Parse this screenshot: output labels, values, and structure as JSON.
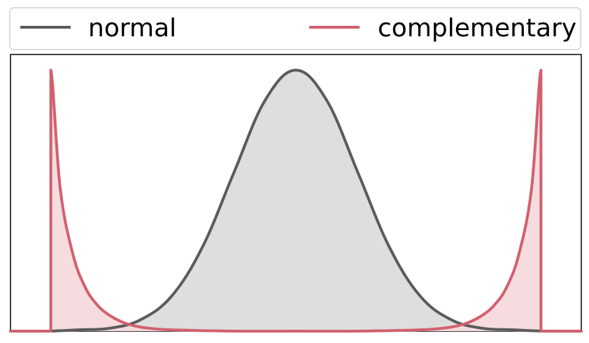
{
  "chart_data": {
    "type": "area",
    "title": "",
    "xlabel": "",
    "ylabel": "",
    "grid": false,
    "axis_ticks": false,
    "legend": {
      "placement": "top",
      "columns": 2,
      "entries": [
        "normal",
        "complementary"
      ]
    },
    "xlim": [
      -4.6,
      4.6
    ],
    "ylim": [
      0,
      1.06
    ],
    "series": [
      {
        "name": "normal",
        "color": "#5b5b5b",
        "fill": "#dedede",
        "x": [
          -4.6,
          -4.0,
          -3.5,
          -3.0,
          -2.5,
          -2.0,
          -1.5,
          -1.0,
          -0.5,
          0.0,
          0.5,
          1.0,
          1.5,
          2.0,
          2.5,
          3.0,
          3.5,
          4.0,
          4.6
        ],
        "y": [
          0.0,
          0.0,
          0.005,
          0.011,
          0.044,
          0.135,
          0.325,
          0.607,
          0.883,
          1.0,
          0.883,
          0.607,
          0.325,
          0.135,
          0.044,
          0.011,
          0.005,
          0.0,
          0.0
        ]
      },
      {
        "name": "complementary",
        "color": "#d1606e",
        "fill": "#f6d8dc",
        "x": [
          -4.6,
          -3.95,
          -3.95,
          -3.8,
          -3.6,
          -3.4,
          -3.2,
          -3.0,
          -2.8,
          -2.6,
          -2.4,
          -2.0,
          -1.0,
          0.0,
          1.0,
          2.0,
          2.4,
          2.6,
          2.8,
          3.0,
          3.2,
          3.4,
          3.6,
          3.8,
          3.95,
          3.95,
          4.6
        ],
        "y": [
          0.0,
          0.0,
          1.0,
          0.55,
          0.3,
          0.17,
          0.1,
          0.06,
          0.035,
          0.02,
          0.012,
          0.005,
          0.0,
          0.0,
          0.0,
          0.005,
          0.012,
          0.02,
          0.035,
          0.06,
          0.1,
          0.17,
          0.3,
          0.55,
          1.0,
          0.0,
          0.0
        ]
      }
    ]
  }
}
